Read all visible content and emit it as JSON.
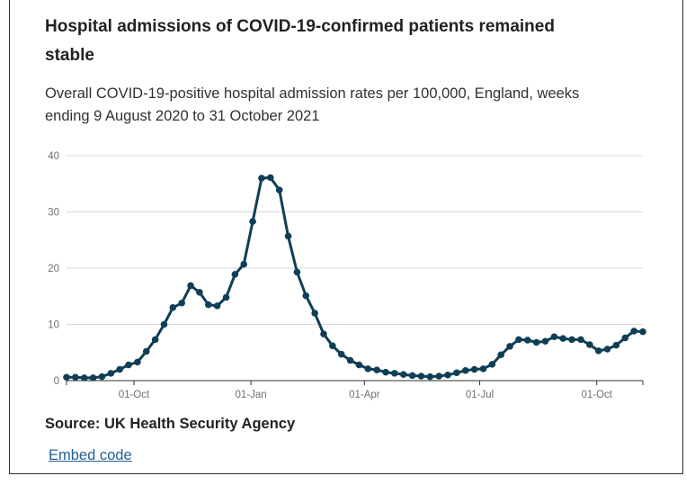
{
  "title": "Hospital admissions of COVID-19-confirmed patients remained stable",
  "subtitle": "Overall COVID-19-positive hospital admission rates per 100,000, England, weeks ending 9 August 2020 to 31 October 2021",
  "source": "Source: UK Health Security Agency",
  "embed_label": "Embed code",
  "colors": {
    "line": "#0f3f56",
    "grid": "#d9d9d9",
    "axis": "#323132",
    "link": "#206095"
  },
  "chart_data": {
    "type": "line",
    "title": "Overall COVID-19-positive hospital admission rates per 100,000, England",
    "xlabel": "",
    "ylabel": "",
    "ylim": [
      0,
      40
    ],
    "yticks": [
      0,
      10,
      20,
      30,
      40
    ],
    "x_tick_labels": [
      {
        "label": "01-Oct",
        "week_index": 7.6
      },
      {
        "label": "01-Jan",
        "week_index": 20.8
      },
      {
        "label": "01-Apr",
        "week_index": 33.6
      },
      {
        "label": "01-Jul",
        "week_index": 46.6
      },
      {
        "label": "01-Oct",
        "week_index": 59.8
      }
    ],
    "series": [
      {
        "name": "Admission rate per 100,000",
        "values": [
          0.6,
          0.6,
          0.5,
          0.5,
          0.7,
          1.3,
          2.0,
          2.8,
          3.3,
          5.2,
          7.3,
          10.0,
          13.0,
          13.8,
          16.9,
          15.7,
          13.5,
          13.3,
          14.8,
          18.9,
          20.7,
          28.3,
          36.0,
          36.1,
          33.9,
          25.7,
          19.3,
          15.1,
          12.0,
          8.3,
          6.2,
          4.7,
          3.6,
          2.8,
          2.1,
          1.9,
          1.5,
          1.3,
          1.1,
          0.9,
          0.8,
          0.7,
          0.8,
          1.0,
          1.4,
          1.8,
          2.0,
          2.1,
          2.9,
          4.6,
          6.1,
          7.3,
          7.2,
          6.8,
          7.0,
          7.8,
          7.5,
          7.3,
          7.3,
          6.4,
          5.3,
          5.6,
          6.3,
          7.6,
          8.8,
          8.7
        ]
      }
    ]
  }
}
